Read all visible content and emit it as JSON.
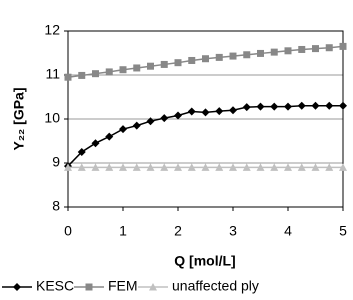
{
  "chart_data": {
    "type": "line",
    "ylabel": "Y₂₂ [GPa]",
    "xlabel": "Q [mol/L]",
    "x": [
      0,
      0.25,
      0.5,
      0.75,
      1,
      1.25,
      1.5,
      1.75,
      2,
      2.25,
      2.5,
      2.75,
      3,
      3.25,
      3.5,
      3.75,
      4,
      4.25,
      4.5,
      4.75,
      5
    ],
    "series": [
      {
        "name": "KESC",
        "color": "#000000",
        "marker": "diamond",
        "values": [
          8.93,
          9.25,
          9.45,
          9.6,
          9.77,
          9.85,
          9.95,
          10.02,
          10.08,
          10.17,
          10.15,
          10.18,
          10.2,
          10.27,
          10.28,
          10.28,
          10.28,
          10.3,
          10.3,
          10.3,
          10.3
        ]
      },
      {
        "name": "FEM",
        "color": "#888888",
        "marker": "square",
        "values": [
          10.95,
          10.99,
          11.03,
          11.07,
          11.12,
          11.16,
          11.2,
          11.24,
          11.28,
          11.33,
          11.37,
          11.4,
          11.43,
          11.46,
          11.49,
          11.52,
          11.55,
          11.58,
          11.6,
          11.62,
          11.65
        ]
      },
      {
        "name": "unaffected ply",
        "color": "#c0c0c0",
        "marker": "triangle",
        "values": [
          8.9,
          8.9,
          8.9,
          8.9,
          8.9,
          8.9,
          8.9,
          8.9,
          8.9,
          8.9,
          8.9,
          8.9,
          8.9,
          8.9,
          8.9,
          8.9,
          8.9,
          8.9,
          8.9,
          8.9,
          8.9
        ]
      }
    ],
    "xlim": [
      0,
      5
    ],
    "xticks": [
      0,
      1,
      2,
      3,
      4,
      5
    ],
    "ylim": [
      8,
      12
    ],
    "yticks": [
      8,
      9,
      10,
      11,
      12
    ],
    "grid": true,
    "legend": "bottom"
  }
}
